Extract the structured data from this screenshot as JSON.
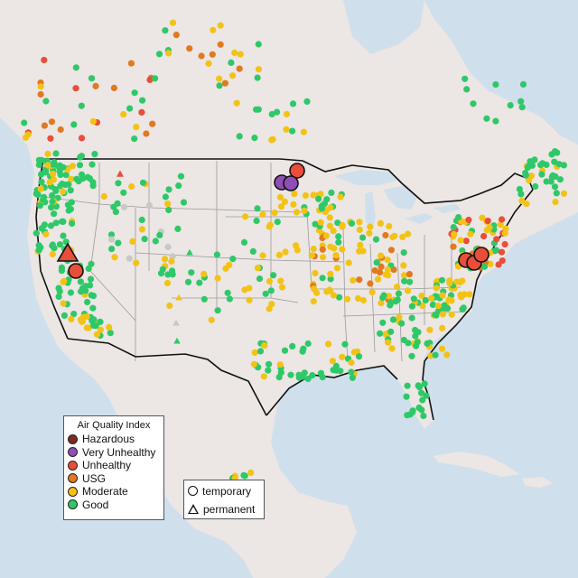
{
  "map": {
    "colors": {
      "water": "#cfe0ec",
      "land": "#ece6e4",
      "us_land": "#eeeae8",
      "state_border": "#9a9a9a",
      "country_border": "#111111"
    },
    "legend_aqi": {
      "title": "Air Quality Index",
      "items": [
        {
          "label": "Hazardous",
          "color": "#7e2b1f"
        },
        {
          "label": "Very Unhealthy",
          "color": "#8e4fb5"
        },
        {
          "label": "Unhealthy",
          "color": "#e84e3a"
        },
        {
          "label": "USG",
          "color": "#e07a20"
        },
        {
          "label": "Moderate",
          "color": "#f2c316"
        },
        {
          "label": "Good",
          "color": "#2fc869"
        }
      ]
    },
    "legend_type": {
      "items": [
        {
          "label": "temporary",
          "shape": "circle"
        },
        {
          "label": "permanent",
          "shape": "triangle"
        }
      ]
    }
  }
}
